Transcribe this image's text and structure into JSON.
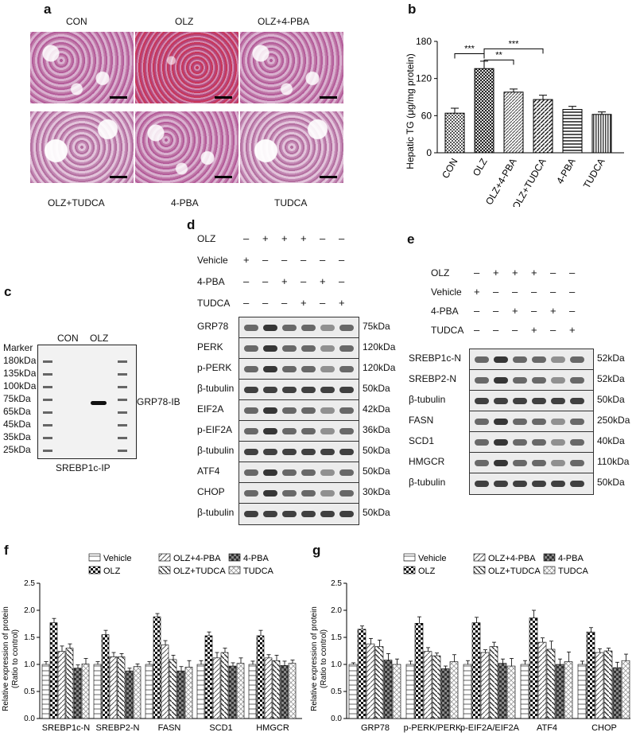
{
  "panel_letters": {
    "a": "a",
    "b": "b",
    "c": "c",
    "d": "d",
    "e": "e",
    "f": "f",
    "g": "g"
  },
  "panel_a": {
    "top_labels": [
      "CON",
      "OLZ",
      "OLZ+4-PBA"
    ],
    "bottom_labels": [
      "OLZ+TUDCA",
      "4-PBA",
      "TUDCA"
    ]
  },
  "panel_b": {
    "ylabel": "Hepatic TG (μg/mg protein)",
    "yticks": [
      "0",
      "60",
      "120",
      "180"
    ],
    "categories": [
      "CON",
      "OLZ",
      "OLZ+4-PBA",
      "OLZ+TUDCA",
      "4-PBA",
      "TUDCA"
    ],
    "sig": [
      "***",
      "**",
      "***"
    ]
  },
  "panel_c": {
    "lane_labels": [
      "CON",
      "OLZ"
    ],
    "markers": [
      "Marker",
      "180kDa",
      "135kDa",
      "100kDa",
      "75kDa",
      "65kDa",
      "45kDa",
      "35kDa",
      "25kDa"
    ],
    "band_label": "GRP78-IB",
    "caption": "SREBP1c-IP"
  },
  "panel_d": {
    "conditions": [
      {
        "name": "OLZ",
        "signs": [
          "–",
          "+",
          "+",
          "+",
          "–",
          "–"
        ]
      },
      {
        "name": "Vehicle",
        "signs": [
          "+",
          "–",
          "–",
          "–",
          "–",
          "–"
        ]
      },
      {
        "name": "4-PBA",
        "signs": [
          "–",
          "–",
          "+",
          "–",
          "+",
          "–"
        ]
      },
      {
        "name": "TUDCA",
        "signs": [
          "–",
          "–",
          "–",
          "+",
          "–",
          "+"
        ]
      }
    ],
    "rows": [
      {
        "name": "GRP78",
        "kda": "75kDa"
      },
      {
        "name": "PERK",
        "kda": "120kDa"
      },
      {
        "name": "p-PERK",
        "kda": "120kDa"
      },
      {
        "name": "β-tubulin",
        "kda": "50kDa"
      },
      {
        "name": "EIF2A",
        "kda": "42kDa"
      },
      {
        "name": "p-EIF2A",
        "kda": "36kDa"
      },
      {
        "name": "β-tubulin",
        "kda": "50kDa"
      },
      {
        "name": "ATF4",
        "kda": "50kDa"
      },
      {
        "name": "CHOP",
        "kda": "30kDa"
      },
      {
        "name": "β-tubulin",
        "kda": "50kDa"
      }
    ]
  },
  "panel_e": {
    "conditions": [
      {
        "name": "OLZ",
        "signs": [
          "–",
          "+",
          "+",
          "+",
          "–",
          "–"
        ]
      },
      {
        "name": "Vehicle",
        "signs": [
          "+",
          "–",
          "–",
          "–",
          "–",
          "–"
        ]
      },
      {
        "name": "4-PBA",
        "signs": [
          "–",
          "–",
          "+",
          "–",
          "+",
          "–"
        ]
      },
      {
        "name": "TUDCA",
        "signs": [
          "–",
          "–",
          "–",
          "+",
          "–",
          "+"
        ]
      }
    ],
    "rows": [
      {
        "name": "SREBP1c-N",
        "kda": "52kDa"
      },
      {
        "name": "SREBP2-N",
        "kda": "52kDa"
      },
      {
        "name": "β-tubulin",
        "kda": "50kDa"
      },
      {
        "name": "FASN",
        "kda": "250kDa"
      },
      {
        "name": "SCD1",
        "kda": "40kDa"
      },
      {
        "name": "HMGCR",
        "kda": "110kDa"
      },
      {
        "name": "β-tubulin",
        "kda": "50kDa"
      }
    ]
  },
  "panel_f": {
    "ylabel1": "Relative expression of protein",
    "ylabel2": "(Ratio to control)",
    "yticks": [
      "0.0",
      "0.5",
      "1.0",
      "1.5",
      "2.0",
      "2.5"
    ],
    "legend": [
      "Vehicle",
      "OLZ+4-PBA",
      "4-PBA",
      "OLZ",
      "OLZ+TUDCA",
      "TUDCA"
    ]
  },
  "panel_g": {
    "ylabel1": "Relative expression of protein",
    "ylabel2": "(Ratio to control)",
    "yticks": [
      "0.0",
      "0.5",
      "1.0",
      "1.5",
      "2.0",
      "2.5"
    ],
    "legend": [
      "Vehicle",
      "OLZ+4-PBA",
      "4-PBA",
      "OLZ",
      "OLZ+TUDCA",
      "TUDCA"
    ]
  },
  "chart_data": [
    {
      "type": "bar",
      "ylabel": "Hepatic TG (μg/mg protein)",
      "ylim": [
        0,
        180
      ],
      "categories": [
        "CON",
        "OLZ",
        "OLZ+4-PBA",
        "OLZ+TUDCA",
        "4-PBA",
        "TUDCA"
      ],
      "values": [
        64,
        136,
        98,
        86,
        70,
        62
      ],
      "errors": [
        8,
        12,
        5,
        7,
        5,
        4
      ],
      "annotations": [
        "***",
        "**",
        "***"
      ]
    },
    {
      "type": "bar",
      "ylabel": "Relative expression of protein (Ratio to control)",
      "ylim": [
        0,
        2.5
      ],
      "categories": [
        "SREBP1c-N",
        "SREBP2-N",
        "FASN",
        "SCD1",
        "HMGCR"
      ],
      "series": [
        {
          "name": "Vehicle",
          "values": [
            1.0,
            1.0,
            1.0,
            1.0,
            1.0
          ],
          "errors": [
            0.05,
            0.05,
            0.05,
            0.07,
            0.06
          ]
        },
        {
          "name": "OLZ",
          "values": [
            1.77,
            1.55,
            1.88,
            1.53,
            1.53
          ],
          "errors": [
            0.08,
            0.08,
            0.06,
            0.07,
            0.1
          ]
        },
        {
          "name": "OLZ+4-PBA",
          "values": [
            1.24,
            1.14,
            1.36,
            1.12,
            1.12
          ],
          "errors": [
            0.1,
            0.08,
            0.08,
            0.1,
            0.06
          ]
        },
        {
          "name": "OLZ+TUDCA",
          "values": [
            1.3,
            1.14,
            1.09,
            1.22,
            1.07
          ],
          "errors": [
            0.08,
            0.06,
            0.08,
            0.08,
            0.1
          ]
        },
        {
          "name": "4-PBA",
          "values": [
            0.93,
            0.88,
            0.88,
            0.97,
            0.98
          ],
          "errors": [
            0.06,
            0.05,
            0.08,
            0.06,
            0.08
          ]
        },
        {
          "name": "TUDCA",
          "values": [
            1.01,
            0.96,
            0.95,
            1.02,
            1.02
          ],
          "errors": [
            0.1,
            0.05,
            0.12,
            0.1,
            0.06
          ]
        }
      ]
    },
    {
      "type": "bar",
      "ylabel": "Relative expression of protein (Ratio to control)",
      "ylim": [
        0,
        2.5
      ],
      "categories": [
        "GRP78",
        "p-PERK/PERK",
        "p-EIF2A/EIF2A",
        "ATF4",
        "CHOP"
      ],
      "series": [
        {
          "name": "Vehicle",
          "values": [
            1.0,
            1.0,
            1.0,
            1.0,
            1.0
          ],
          "errors": [
            0.03,
            0.06,
            0.07,
            0.07,
            0.06
          ]
        },
        {
          "name": "OLZ",
          "values": [
            1.65,
            1.76,
            1.77,
            1.86,
            1.6
          ],
          "errors": [
            0.06,
            0.12,
            0.1,
            0.14,
            0.08
          ]
        },
        {
          "name": "OLZ+4-PBA",
          "values": [
            1.38,
            1.24,
            1.22,
            1.41,
            1.22
          ],
          "errors": [
            0.1,
            0.07,
            0.05,
            0.08,
            0.07
          ]
        },
        {
          "name": "OLZ+TUDCA",
          "values": [
            1.33,
            1.16,
            1.33,
            1.28,
            1.25
          ],
          "errors": [
            0.12,
            0.05,
            0.08,
            0.15,
            0.05
          ]
        },
        {
          "name": "4-PBA",
          "values": [
            1.08,
            0.92,
            1.02,
            1.0,
            0.94
          ],
          "errors": [
            0.12,
            0.05,
            0.08,
            0.1,
            0.1
          ]
        },
        {
          "name": "TUDCA",
          "values": [
            1.0,
            1.05,
            0.97,
            1.05,
            1.07
          ],
          "errors": [
            0.1,
            0.13,
            0.14,
            0.18,
            0.12
          ]
        }
      ]
    }
  ]
}
